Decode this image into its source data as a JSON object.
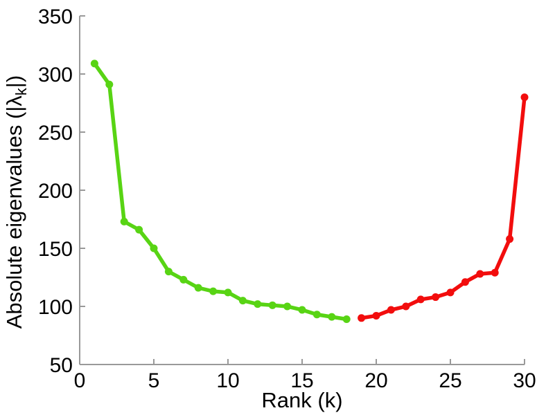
{
  "figure": {
    "background": "#ffffff",
    "axis_color": "#999999",
    "text_color": "#000000"
  },
  "chart_data": {
    "type": "line",
    "title": "",
    "xlabel": "Rank (k)",
    "ylabel": {
      "prefix": "Absolute eigenvalues (|λ",
      "subscript": "k",
      "suffix": "|)"
    },
    "xlim": [
      0,
      30
    ],
    "ylim": [
      50,
      350
    ],
    "xticks": [
      0,
      5,
      10,
      15,
      20,
      25,
      30
    ],
    "yticks": [
      50,
      100,
      150,
      200,
      250,
      300,
      350
    ],
    "grid": false,
    "legend": "none",
    "marker": "dot",
    "line_width": 5.5,
    "marker_radius": 5.5,
    "series": [
      {
        "name": "leading-eigenvalues-green",
        "color": "#58d414",
        "x": [
          1,
          2,
          3,
          4,
          5,
          6,
          7,
          8,
          9,
          10,
          11,
          12,
          13,
          14,
          15,
          16,
          17,
          18
        ],
        "y": [
          309,
          291,
          173,
          166,
          150,
          130,
          123,
          116,
          113,
          112,
          105,
          102,
          101,
          100,
          97,
          93,
          91,
          89
        ]
      },
      {
        "name": "trailing-eigenvalues-red",
        "color": "#f20d0d",
        "x": [
          19,
          20,
          21,
          22,
          23,
          24,
          25,
          26,
          27,
          28,
          29,
          30
        ],
        "y": [
          90,
          92,
          97,
          100,
          106,
          108,
          112,
          121,
          128,
          129,
          158,
          280
        ]
      }
    ]
  }
}
